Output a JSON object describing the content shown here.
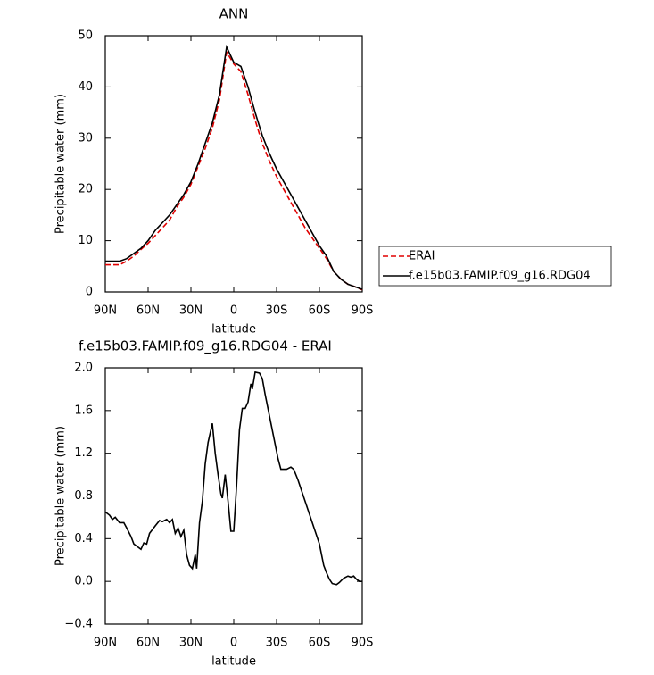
{
  "chart_data": [
    {
      "type": "line",
      "title": "ANN",
      "xlabel": "latitude",
      "ylabel": "Precipitable water (mm)",
      "x": [
        90,
        85,
        80,
        75,
        70,
        65,
        60,
        55,
        50,
        45,
        40,
        35,
        30,
        25,
        20,
        15,
        10,
        5,
        0,
        -5,
        -10,
        -15,
        -20,
        -25,
        -30,
        -35,
        -40,
        -45,
        -50,
        -55,
        -60,
        -65,
        -70,
        -75,
        -80,
        -85,
        -90
      ],
      "series": [
        {
          "name": "ERAI",
          "color": "#e00000",
          "dashed": true,
          "values": [
            5.3,
            5.3,
            5.3,
            6,
            7,
            8.3,
            9.5,
            11,
            12.5,
            14,
            16.5,
            18.5,
            21,
            24.5,
            28,
            32,
            37.5,
            46.8,
            44.5,
            43,
            38.5,
            33.5,
            29,
            25.5,
            22.5,
            20,
            17.5,
            15,
            12.5,
            10.5,
            8.5,
            6.5,
            4,
            2.5,
            1.5,
            1,
            0.4
          ]
        },
        {
          "name": "f.e15b03.FAMIP.f09_g16.RDG04",
          "color": "#000000",
          "dashed": false,
          "values": [
            6,
            6,
            6,
            6.5,
            7.5,
            8.5,
            10,
            12,
            13.5,
            15,
            17,
            19,
            21.5,
            25,
            29,
            33,
            38.5,
            47.8,
            44.8,
            44,
            40,
            35,
            30.5,
            27,
            24,
            21.5,
            19,
            16.5,
            14,
            11.5,
            9,
            7,
            4,
            2.5,
            1.5,
            1,
            0.5
          ]
        }
      ],
      "xlim": [
        90,
        -90
      ],
      "xticks": [
        {
          "value": 90,
          "label": "90N"
        },
        {
          "value": 60,
          "label": "60N"
        },
        {
          "value": 30,
          "label": "30N"
        },
        0,
        {
          "value": -30,
          "label": "30S"
        },
        {
          "value": -60,
          "label": "60S"
        },
        {
          "value": -90,
          "label": "90S"
        }
      ],
      "ylim": [
        0,
        50
      ],
      "yticks": [
        0,
        10,
        20,
        30,
        40,
        50
      ],
      "legend": "right"
    },
    {
      "type": "line",
      "title": "f.e15b03.FAMIP.f09_g16.RDG04 - ERAI",
      "xlabel": "latitude",
      "ylabel": "Precipitable water (mm)",
      "x": [
        90,
        87,
        85,
        83,
        80,
        77,
        75,
        72,
        70,
        67,
        65,
        63,
        61,
        59,
        55,
        52,
        50,
        47,
        45,
        43,
        41,
        39,
        37,
        35,
        33,
        31,
        29,
        27,
        26,
        24,
        22,
        20,
        18,
        15,
        13,
        11,
        9,
        8,
        6,
        4,
        2,
        0,
        -2,
        -4,
        -6,
        -8,
        -10,
        -12,
        -13,
        -15,
        -18,
        -20,
        -22,
        -25,
        -28,
        -31,
        -33,
        -37,
        -40,
        -42,
        -45,
        -50,
        -55,
        -60,
        -63,
        -65,
        -67,
        -69,
        -72,
        -74,
        -77,
        -80,
        -82,
        -84,
        -86,
        -88,
        -90
      ],
      "values": [
        0.65,
        0.62,
        0.58,
        0.6,
        0.55,
        0.55,
        0.5,
        0.42,
        0.35,
        0.32,
        0.3,
        0.36,
        0.35,
        0.45,
        0.52,
        0.57,
        0.56,
        0.58,
        0.55,
        0.58,
        0.45,
        0.5,
        0.42,
        0.48,
        0.25,
        0.15,
        0.12,
        0.25,
        0.12,
        0.55,
        0.75,
        1.1,
        1.3,
        1.48,
        1.2,
        1.0,
        0.82,
        0.78,
        1.0,
        0.75,
        0.47,
        0.47,
        0.9,
        1.42,
        1.62,
        1.62,
        1.68,
        1.85,
        1.8,
        1.96,
        1.95,
        1.9,
        1.75,
        1.55,
        1.35,
        1.15,
        1.05,
        1.05,
        1.07,
        1.05,
        0.95,
        0.75,
        0.55,
        0.35,
        0.15,
        0.08,
        0.02,
        -0.02,
        -0.03,
        -0.01,
        0.03,
        0.05,
        0.04,
        0.05,
        0.02,
        0,
        0
      ],
      "color": "#000000",
      "xlim": [
        90,
        -90
      ],
      "xticks": [
        {
          "value": 90,
          "label": "90N"
        },
        {
          "value": 60,
          "label": "60N"
        },
        {
          "value": 30,
          "label": "30N"
        },
        0,
        {
          "value": -30,
          "label": "30S"
        },
        {
          "value": -60,
          "label": "60S"
        },
        {
          "value": -90,
          "label": "90S"
        }
      ],
      "ylim": [
        -0.4,
        2.0
      ],
      "yticks": [
        {
          "value": -0.4,
          "label": "−0.4"
        },
        {
          "value": 0,
          "label": "0.0"
        },
        0.4,
        0.8,
        1.2,
        1.6,
        {
          "value": 2.0,
          "label": "2.0"
        }
      ]
    }
  ]
}
